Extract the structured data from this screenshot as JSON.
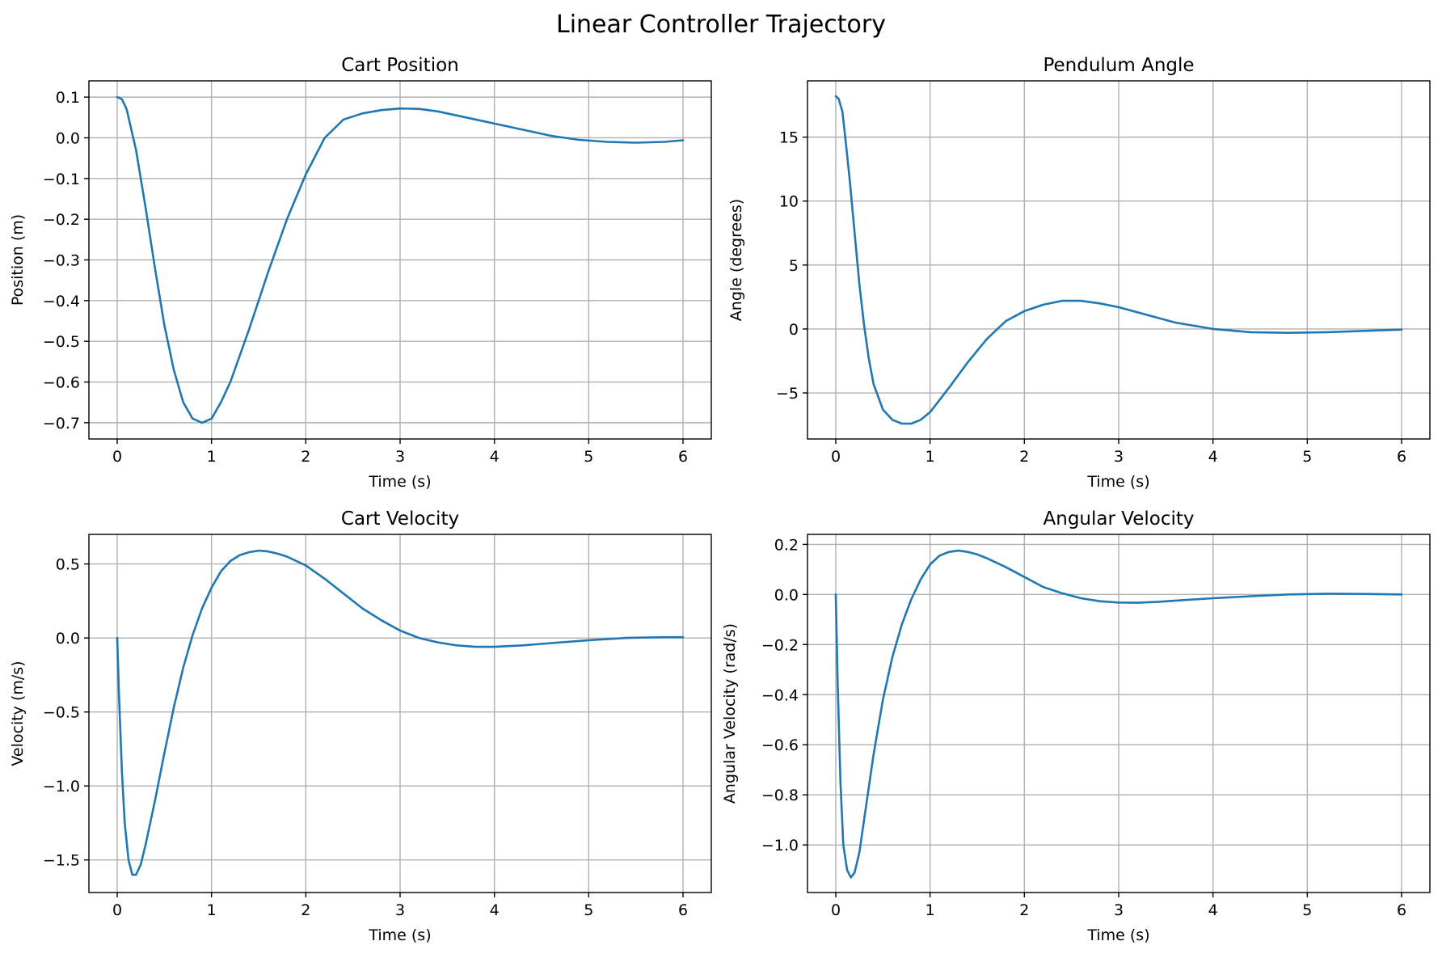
{
  "figure": {
    "title": "Linear Controller Trajectory"
  },
  "colors": {
    "line": "#1f77b4",
    "grid": "#b0b0b0",
    "axes": "#000000"
  },
  "chart_data": [
    {
      "type": "line",
      "title": "Cart Position",
      "xlabel": "Time (s)",
      "ylabel": "Position (m)",
      "xlim": [
        -0.3,
        6.3
      ],
      "ylim": [
        -0.74,
        0.14
      ],
      "xticks": [
        0,
        1,
        2,
        3,
        4,
        5,
        6
      ],
      "xtick_labels": [
        "0",
        "1",
        "2",
        "3",
        "4",
        "5",
        "6"
      ],
      "yticks": [
        -0.7,
        -0.6,
        -0.5,
        -0.4,
        -0.3,
        -0.2,
        -0.1,
        0.0,
        0.1
      ],
      "ytick_labels": [
        "−0.7",
        "−0.6",
        "−0.5",
        "−0.4",
        "−0.3",
        "−0.2",
        "−0.1",
        "0.0",
        "0.1"
      ],
      "grid": true,
      "series": [
        {
          "x": [
            0,
            0.05,
            0.1,
            0.2,
            0.3,
            0.4,
            0.5,
            0.6,
            0.7,
            0.8,
            0.9,
            1.0,
            1.1,
            1.2,
            1.4,
            1.6,
            1.8,
            2.0,
            2.2,
            2.4,
            2.6,
            2.8,
            3.0,
            3.2,
            3.4,
            3.6,
            3.8,
            4.0,
            4.3,
            4.6,
            4.9,
            5.2,
            5.5,
            5.8,
            6.0
          ],
          "y": [
            0.1,
            0.095,
            0.07,
            -0.03,
            -0.17,
            -0.32,
            -0.46,
            -0.57,
            -0.65,
            -0.69,
            -0.7,
            -0.69,
            -0.65,
            -0.6,
            -0.47,
            -0.33,
            -0.2,
            -0.09,
            0.0,
            0.045,
            0.06,
            0.068,
            0.072,
            0.071,
            0.065,
            0.055,
            0.045,
            0.035,
            0.02,
            0.005,
            -0.005,
            -0.01,
            -0.012,
            -0.01,
            -0.006
          ]
        }
      ]
    },
    {
      "type": "line",
      "title": "Pendulum Angle",
      "xlabel": "Time (s)",
      "ylabel": "Angle (degrees)",
      "xlim": [
        -0.3,
        6.3
      ],
      "ylim": [
        -8.6,
        19.4
      ],
      "xticks": [
        0,
        1,
        2,
        3,
        4,
        5,
        6
      ],
      "xtick_labels": [
        "0",
        "1",
        "2",
        "3",
        "4",
        "5",
        "6"
      ],
      "yticks": [
        -5,
        0,
        5,
        10,
        15
      ],
      "ytick_labels": [
        "−5",
        "0",
        "5",
        "10",
        "15"
      ],
      "grid": true,
      "series": [
        {
          "x": [
            0,
            0.03,
            0.07,
            0.1,
            0.15,
            0.2,
            0.25,
            0.3,
            0.35,
            0.4,
            0.5,
            0.6,
            0.7,
            0.8,
            0.9,
            1.0,
            1.2,
            1.4,
            1.6,
            1.8,
            2.0,
            2.2,
            2.4,
            2.6,
            2.8,
            3.0,
            3.3,
            3.6,
            4.0,
            4.4,
            4.8,
            5.2,
            5.6,
            6.0
          ],
          "y": [
            18.2,
            18.0,
            17.0,
            15.0,
            11.5,
            7.5,
            3.5,
            0.3,
            -2.3,
            -4.3,
            -6.3,
            -7.1,
            -7.4,
            -7.4,
            -7.1,
            -6.5,
            -4.6,
            -2.6,
            -0.8,
            0.6,
            1.4,
            1.9,
            2.2,
            2.2,
            2.0,
            1.7,
            1.1,
            0.5,
            0.0,
            -0.25,
            -0.3,
            -0.25,
            -0.15,
            -0.05
          ]
        }
      ]
    },
    {
      "type": "line",
      "title": "Cart Velocity",
      "xlabel": "Time (s)",
      "ylabel": "Velocity (m/s)",
      "xlim": [
        -0.3,
        6.3
      ],
      "ylim": [
        -1.72,
        0.7
      ],
      "xticks": [
        0,
        1,
        2,
        3,
        4,
        5,
        6
      ],
      "xtick_labels": [
        "0",
        "1",
        "2",
        "3",
        "4",
        "5",
        "6"
      ],
      "yticks": [
        -1.5,
        -1.0,
        -0.5,
        0.0,
        0.5
      ],
      "ytick_labels": [
        "−1.5",
        "−1.0",
        "−0.5",
        "0.0",
        "0.5"
      ],
      "grid": true,
      "series": [
        {
          "x": [
            0,
            0.02,
            0.05,
            0.08,
            0.12,
            0.16,
            0.2,
            0.25,
            0.3,
            0.4,
            0.5,
            0.6,
            0.7,
            0.8,
            0.9,
            1.0,
            1.1,
            1.2,
            1.3,
            1.4,
            1.5,
            1.6,
            1.7,
            1.8,
            2.0,
            2.2,
            2.4,
            2.6,
            2.8,
            3.0,
            3.2,
            3.4,
            3.6,
            3.8,
            4.0,
            4.3,
            4.6,
            5.0,
            5.4,
            5.8,
            6.0
          ],
          "y": [
            0.0,
            -0.4,
            -0.9,
            -1.25,
            -1.5,
            -1.6,
            -1.6,
            -1.53,
            -1.4,
            -1.1,
            -0.78,
            -0.47,
            -0.2,
            0.02,
            0.2,
            0.34,
            0.45,
            0.52,
            0.56,
            0.58,
            0.59,
            0.585,
            0.57,
            0.55,
            0.49,
            0.4,
            0.3,
            0.2,
            0.12,
            0.05,
            0.0,
            -0.03,
            -0.05,
            -0.06,
            -0.06,
            -0.05,
            -0.035,
            -0.015,
            0.0,
            0.005,
            0.005
          ]
        }
      ]
    },
    {
      "type": "line",
      "title": "Angular Velocity",
      "xlabel": "Time (s)",
      "ylabel": "Angular Velocity (rad/s)",
      "xlim": [
        -0.3,
        6.3
      ],
      "ylim": [
        -1.19,
        0.24
      ],
      "xticks": [
        0,
        1,
        2,
        3,
        4,
        5,
        6
      ],
      "xtick_labels": [
        "0",
        "1",
        "2",
        "3",
        "4",
        "5",
        "6"
      ],
      "yticks": [
        -1.0,
        -0.8,
        -0.6,
        -0.4,
        -0.2,
        0.0,
        0.2
      ],
      "ytick_labels": [
        "−1.0",
        "−0.8",
        "−0.6",
        "−0.4",
        "−0.2",
        "0.0",
        "0.2"
      ],
      "grid": true,
      "series": [
        {
          "x": [
            0,
            0.02,
            0.05,
            0.08,
            0.12,
            0.16,
            0.2,
            0.25,
            0.3,
            0.4,
            0.5,
            0.6,
            0.7,
            0.8,
            0.9,
            1.0,
            1.1,
            1.2,
            1.3,
            1.4,
            1.5,
            1.6,
            1.8,
            2.0,
            2.2,
            2.4,
            2.6,
            2.8,
            3.0,
            3.2,
            3.4,
            3.7,
            4.0,
            4.4,
            4.8,
            5.2,
            5.6,
            6.0
          ],
          "y": [
            0.0,
            -0.35,
            -0.75,
            -1.0,
            -1.1,
            -1.13,
            -1.11,
            -1.03,
            -0.9,
            -0.64,
            -0.42,
            -0.25,
            -0.12,
            -0.02,
            0.06,
            0.12,
            0.155,
            0.17,
            0.175,
            0.17,
            0.16,
            0.145,
            0.11,
            0.07,
            0.03,
            0.005,
            -0.015,
            -0.027,
            -0.032,
            -0.033,
            -0.03,
            -0.022,
            -0.015,
            -0.007,
            0.0,
            0.003,
            0.002,
            0.0
          ]
        }
      ]
    }
  ]
}
